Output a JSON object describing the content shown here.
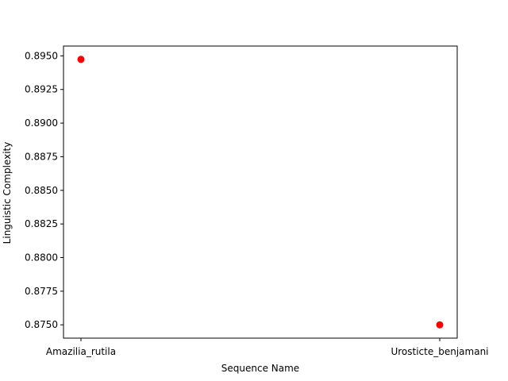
{
  "chart_data": {
    "type": "scatter",
    "xlabel": "Sequence Name",
    "ylabel": "Linguistic Complexity",
    "categories": [
      "Amazilia_rutila",
      "Urosticte_benjamani"
    ],
    "series": [
      {
        "color": "#ff0000",
        "points": [
          {
            "x": "Amazilia_rutila",
            "y": 0.89474
          },
          {
            "x": "Urosticte_benjamani",
            "y": 0.875
          }
        ]
      }
    ],
    "ylim": [
      0.87401,
      0.89573
    ],
    "yticks": [
      "0.8750",
      "0.8775",
      "0.8800",
      "0.8825",
      "0.8850",
      "0.8875",
      "0.8900",
      "0.8925",
      "0.8950"
    ],
    "grid": false,
    "legend": "none"
  }
}
